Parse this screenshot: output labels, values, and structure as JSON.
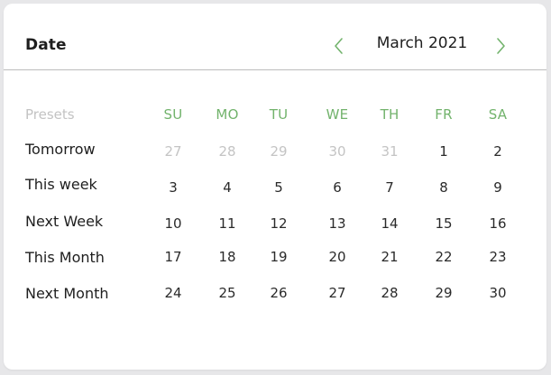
{
  "header": {
    "title": "Date",
    "month_label": "March 2021",
    "prev_icon": "chevron-left-icon",
    "next_icon": "chevron-right-icon"
  },
  "colors": {
    "accent": "#72b36c",
    "text": "#1e1e1e",
    "muted": "#c4c4c4",
    "divider": "#bcbcbc"
  },
  "presets": {
    "header": "Presets",
    "items": [
      "Tomorrow",
      "This week",
      "Next Week",
      "This Month",
      "Next Month"
    ]
  },
  "calendar": {
    "weekdays": [
      "SU",
      "MO",
      "TU",
      "WE",
      "TH",
      "FR",
      "SA"
    ],
    "weeks": [
      [
        {
          "d": "27",
          "muted": true
        },
        {
          "d": "28",
          "muted": true
        },
        {
          "d": "29",
          "muted": true
        },
        {
          "d": "30",
          "muted": true
        },
        {
          "d": "31",
          "muted": true
        },
        {
          "d": "1",
          "muted": false
        },
        {
          "d": "2",
          "muted": false
        }
      ],
      [
        {
          "d": "3",
          "muted": false
        },
        {
          "d": "4",
          "muted": false
        },
        {
          "d": "5",
          "muted": false
        },
        {
          "d": "6",
          "muted": false
        },
        {
          "d": "7",
          "muted": false
        },
        {
          "d": "8",
          "muted": false
        },
        {
          "d": "9",
          "muted": false
        }
      ],
      [
        {
          "d": "10",
          "muted": false
        },
        {
          "d": "11",
          "muted": false
        },
        {
          "d": "12",
          "muted": false
        },
        {
          "d": "13",
          "muted": false
        },
        {
          "d": "14",
          "muted": false
        },
        {
          "d": "15",
          "muted": false
        },
        {
          "d": "16",
          "muted": false
        }
      ],
      [
        {
          "d": "17",
          "muted": false
        },
        {
          "d": "18",
          "muted": false
        },
        {
          "d": "19",
          "muted": false
        },
        {
          "d": "20",
          "muted": false
        },
        {
          "d": "21",
          "muted": false
        },
        {
          "d": "22",
          "muted": false
        },
        {
          "d": "23",
          "muted": false
        }
      ],
      [
        {
          "d": "24",
          "muted": false
        },
        {
          "d": "25",
          "muted": false
        },
        {
          "d": "26",
          "muted": false
        },
        {
          "d": "27",
          "muted": false
        },
        {
          "d": "28",
          "muted": false
        },
        {
          "d": "29",
          "muted": false
        },
        {
          "d": "30",
          "muted": false
        }
      ]
    ]
  }
}
